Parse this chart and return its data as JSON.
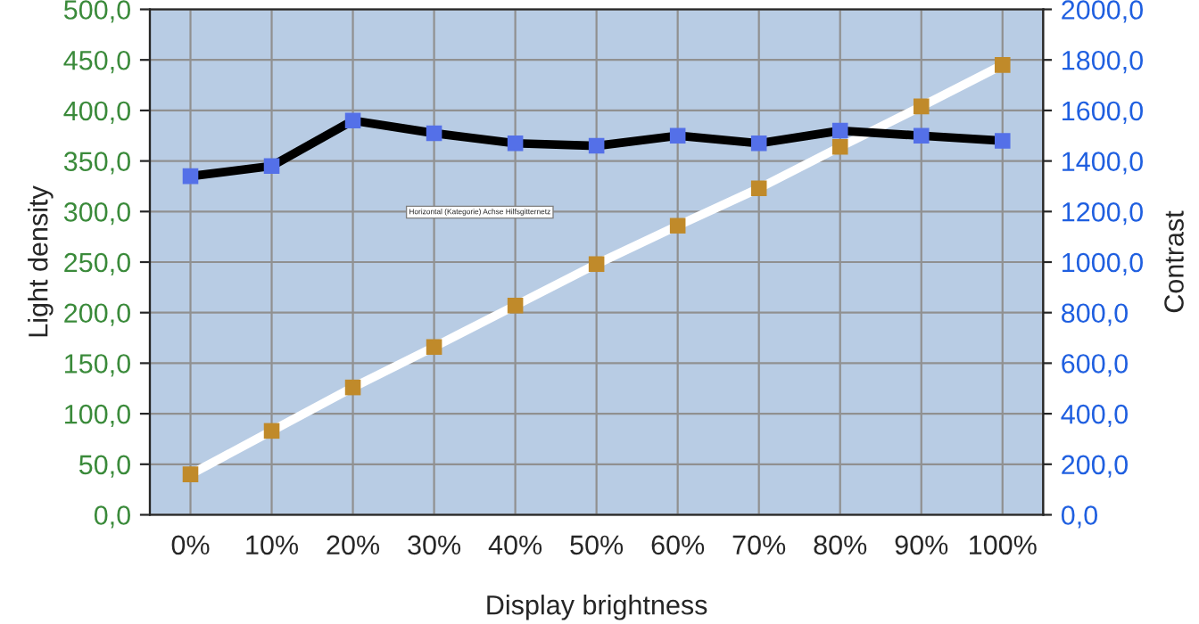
{
  "chart_data": {
    "type": "line",
    "xlabel": "Display brightness",
    "ylabel": "Light density",
    "y2label": "Contrast",
    "categories": [
      "0%",
      "10%",
      "20%",
      "30%",
      "40%",
      "50%",
      "60%",
      "70%",
      "80%",
      "90%",
      "100%"
    ],
    "series": [
      {
        "color": "#ffffff",
        "colors": [
          "#c08a2a",
          "#c08a2a",
          "#c08a2a",
          "#c08a2a",
          "#c08a2a",
          "#c08a2a",
          "#c08a2a",
          "#c08a2a",
          "#c08a2a",
          "#c08a2a",
          "#c08a2a"
        ],
        "values": [
          40,
          83,
          126,
          166,
          207,
          248,
          286,
          323,
          364,
          404,
          445
        ]
      },
      {
        "color": "#000000",
        "colors": [
          "#5470e8",
          "#5470e8",
          "#5470e8",
          "#5470e8",
          "#5470e8",
          "#5470e8",
          "#5470e8",
          "#5470e8",
          "#5470e8",
          "#5470e8",
          "#5470e8"
        ],
        "axis": "y2",
        "values": [
          1340,
          1380,
          1560,
          1510,
          1470,
          1460,
          1500,
          1470,
          1520,
          1500,
          1480
        ]
      }
    ],
    "ylim": [
      0,
      500
    ],
    "yticks": [
      {
        "value": 0,
        "label": "0,0"
      },
      {
        "value": 50,
        "label": "50,0"
      },
      {
        "value": 100,
        "label": "100,0"
      },
      {
        "value": 150,
        "label": "150,0"
      },
      {
        "value": 200,
        "label": "200,0"
      },
      {
        "value": 250,
        "label": "250,0"
      },
      {
        "value": 300,
        "label": "300,0"
      },
      {
        "value": 350,
        "label": "350,0"
      },
      {
        "value": 400,
        "label": "400,0"
      },
      {
        "value": 450,
        "label": "450,0"
      },
      {
        "value": 500,
        "label": "500,0"
      }
    ],
    "y2lim": [
      0,
      2000
    ],
    "y2ticks": [
      {
        "value": 0,
        "label": "0,0"
      },
      {
        "value": 200,
        "label": "200,0"
      },
      {
        "value": 400,
        "label": "400,0"
      },
      {
        "value": 600,
        "label": "600,0"
      },
      {
        "value": 800,
        "label": "800,0"
      },
      {
        "value": 1000,
        "label": "1000,0"
      },
      {
        "value": 1200,
        "label": "1200,0"
      },
      {
        "value": 1400,
        "label": "1400,0"
      },
      {
        "value": 1600,
        "label": "1600,0"
      },
      {
        "value": 1800,
        "label": "1800,0"
      },
      {
        "value": 2000,
        "label": "2000,0"
      }
    ],
    "annotations": [
      "Horizontal (Kategorie) Achse Hilfsgitternetz"
    ],
    "grid": true,
    "marker": "square",
    "line_style": "solid"
  }
}
